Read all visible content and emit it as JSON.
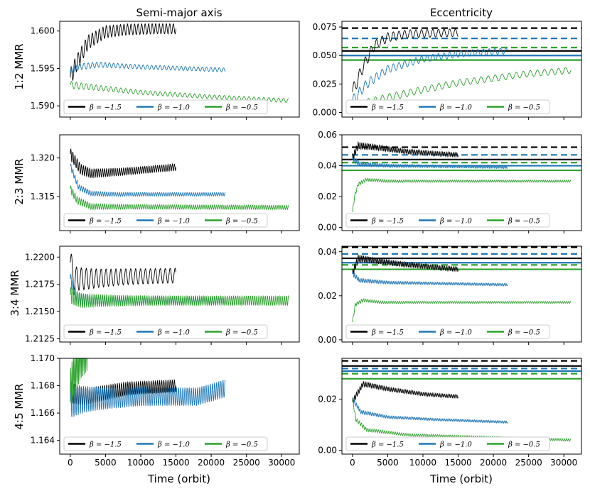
{
  "columns": [
    "Semi-major axis",
    "Eccentricity"
  ],
  "rows": [
    "1:2 MMR",
    "2:3 MMR",
    "3:4 MMR",
    "4:5 MMR"
  ],
  "xlabel": "Time (orbit)",
  "xticks": [
    0,
    5000,
    10000,
    15000,
    20000,
    25000,
    30000
  ],
  "xticks_labels": [
    "0",
    "5000",
    "10000",
    "15000",
    "20000",
    "25000",
    "30000"
  ],
  "xlim": [
    -1500,
    32500
  ],
  "colors": {
    "beta_-1.5": "#000000",
    "beta_-1.0": "#1f77b4",
    "beta_-0.5": "#2ca02c"
  },
  "legend": [
    "β = −1.5",
    "β = −1.0",
    "β = −0.5"
  ],
  "chart_data": [
    {
      "type": "line",
      "row": "1:2 MMR",
      "column": "Semi-major axis",
      "ylim": [
        1.5885,
        1.6013
      ],
      "yticks": [
        1.59,
        1.595,
        1.6
      ],
      "ytick_labels": [
        "1.590",
        "1.595",
        "1.600"
      ],
      "series": [
        {
          "name": "β = −1.5",
          "color": "#000000",
          "t_end": 15000,
          "points": [
            [
              0,
              1.5938
            ],
            [
              800,
              1.5955
            ],
            [
              2500,
              1.5985
            ],
            [
              5000,
              1.5999
            ],
            [
              8000,
              1.6002
            ],
            [
              12000,
              1.6003
            ],
            [
              15000,
              1.6003
            ]
          ],
          "osc_amp": 0.0012,
          "osc_period": 500
        },
        {
          "name": "β = −1.0",
          "color": "#1f77b4",
          "t_end": 22000,
          "points": [
            [
              0,
              1.5945
            ],
            [
              1000,
              1.5952
            ],
            [
              4000,
              1.5955
            ],
            [
              10000,
              1.5952
            ],
            [
              16000,
              1.595
            ],
            [
              22000,
              1.5948
            ]
          ],
          "osc_amp": 0.0005,
          "osc_period": 600
        },
        {
          "name": "β = −0.5",
          "color": "#2ca02c",
          "t_end": 31000,
          "points": [
            [
              0,
              1.5928
            ],
            [
              3000,
              1.5925
            ],
            [
              10000,
              1.5918
            ],
            [
              20000,
              1.5912
            ],
            [
              31000,
              1.5907
            ]
          ],
          "osc_amp": 0.0005,
          "osc_period": 700
        }
      ],
      "hlines": []
    },
    {
      "type": "line",
      "row": "1:2 MMR",
      "column": "Eccentricity",
      "ylim": [
        -0.004,
        0.08
      ],
      "yticks": [
        0.0,
        0.025,
        0.05,
        0.075
      ],
      "ytick_labels": [
        "0.000",
        "0.025",
        "0.050",
        "0.075"
      ],
      "series": [
        {
          "name": "β = −1.5",
          "color": "#000000",
          "t_end": 15000,
          "points": [
            [
              0,
              0.018
            ],
            [
              1500,
              0.04
            ],
            [
              3000,
              0.058
            ],
            [
              5000,
              0.066
            ],
            [
              8000,
              0.069
            ],
            [
              15000,
              0.07
            ]
          ],
          "osc_amp": 0.006,
          "osc_period": 800
        },
        {
          "name": "β = −1.0",
          "color": "#1f77b4",
          "t_end": 22000,
          "points": [
            [
              0,
              0.01
            ],
            [
              2000,
              0.025
            ],
            [
              5000,
              0.038
            ],
            [
              10000,
              0.047
            ],
            [
              16000,
              0.052
            ],
            [
              22000,
              0.054
            ]
          ],
          "osc_amp": 0.005,
          "osc_period": 800
        },
        {
          "name": "β = −0.5",
          "color": "#2ca02c",
          "t_end": 31000,
          "points": [
            [
              0,
              0.002
            ],
            [
              2000,
              0.008
            ],
            [
              5000,
              0.013
            ],
            [
              10000,
              0.02
            ],
            [
              15000,
              0.026
            ],
            [
              20000,
              0.03
            ],
            [
              25000,
              0.034
            ],
            [
              31000,
              0.037
            ]
          ],
          "osc_amp": 0.005,
          "osc_period": 1000
        }
      ],
      "hlines": [
        {
          "y": 0.074,
          "color": "#000000",
          "dashed": true
        },
        {
          "y": 0.054,
          "color": "#000000",
          "dashed": false
        },
        {
          "y": 0.065,
          "color": "#1f77b4",
          "dashed": true
        },
        {
          "y": 0.05,
          "color": "#1f77b4",
          "dashed": false
        },
        {
          "y": 0.057,
          "color": "#2ca02c",
          "dashed": true
        },
        {
          "y": 0.046,
          "color": "#2ca02c",
          "dashed": false
        }
      ]
    },
    {
      "type": "line",
      "row": "2:3 MMR",
      "column": "Semi-major axis",
      "ylim": [
        1.3106,
        1.323
      ],
      "yticks": [
        1.315,
        1.32
      ],
      "ytick_labels": [
        "1.315",
        "1.320"
      ],
      "series": [
        {
          "name": "β = −1.5",
          "color": "#000000",
          "t_end": 15000,
          "points": [
            [
              0,
              1.3205
            ],
            [
              400,
              1.32
            ],
            [
              1500,
              1.3185
            ],
            [
              3000,
              1.318
            ],
            [
              7000,
              1.3182
            ],
            [
              15000,
              1.3188
            ]
          ],
          "osc_amp": 0.0008,
          "osc_period": 300
        },
        {
          "name": "β = −1.0",
          "color": "#1f77b4",
          "t_end": 22000,
          "points": [
            [
              0,
              1.319
            ],
            [
              1200,
              1.3162
            ],
            [
              3000,
              1.3154
            ],
            [
              6000,
              1.3153
            ],
            [
              22000,
              1.3153
            ]
          ],
          "osc_amp": 0.0004,
          "osc_period": 300
        },
        {
          "name": "β = −0.5",
          "color": "#2ca02c",
          "t_end": 31000,
          "points": [
            [
              0,
              1.316
            ],
            [
              1000,
              1.3145
            ],
            [
              3000,
              1.3137
            ],
            [
              31000,
              1.3136
            ]
          ],
          "osc_amp": 0.0005,
          "osc_period": 300
        }
      ],
      "hlines": []
    },
    {
      "type": "line",
      "row": "2:3 MMR",
      "column": "Eccentricity",
      "ylim": [
        -0.002,
        0.06
      ],
      "yticks": [
        0.0,
        0.02,
        0.04,
        0.06
      ],
      "ytick_labels": [
        "0.00",
        "0.02",
        "0.04",
        "0.06"
      ],
      "series": [
        {
          "name": "β = −1.5",
          "color": "#000000",
          "t_end": 15000,
          "points": [
            [
              0,
              0.045
            ],
            [
              800,
              0.053
            ],
            [
              3000,
              0.052
            ],
            [
              8000,
              0.049
            ],
            [
              15000,
              0.047
            ]
          ],
          "osc_amp": 0.0025,
          "osc_period": 250
        },
        {
          "name": "β = −1.0",
          "color": "#1f77b4",
          "t_end": 22000,
          "points": [
            [
              0,
              0.044
            ],
            [
              1200,
              0.041
            ],
            [
              5000,
              0.04
            ],
            [
              22000,
              0.039
            ]
          ],
          "osc_amp": 0.0015,
          "osc_period": 250
        },
        {
          "name": "β = −0.5",
          "color": "#2ca02c",
          "t_end": 31000,
          "points": [
            [
              0,
              0.01
            ],
            [
              300,
              0.02
            ],
            [
              800,
              0.028
            ],
            [
              2000,
              0.031
            ],
            [
              5000,
              0.03
            ],
            [
              31000,
              0.03
            ]
          ],
          "osc_amp": 0.0012,
          "osc_period": 300
        }
      ],
      "hlines": [
        {
          "y": 0.052,
          "color": "#000000",
          "dashed": true
        },
        {
          "y": 0.044,
          "color": "#000000",
          "dashed": false
        },
        {
          "y": 0.047,
          "color": "#1f77b4",
          "dashed": true
        },
        {
          "y": 0.04,
          "color": "#1f77b4",
          "dashed": false
        },
        {
          "y": 0.042,
          "color": "#2ca02c",
          "dashed": true
        },
        {
          "y": 0.037,
          "color": "#2ca02c",
          "dashed": false
        }
      ]
    },
    {
      "type": "line",
      "row": "3:4 MMR",
      "column": "Semi-major axis",
      "ylim": [
        1.2122,
        1.221
      ],
      "yticks": [
        1.2125,
        1.215,
        1.2175,
        1.22
      ],
      "ytick_labels": [
        "1.2125",
        "1.2150",
        "1.2175",
        "1.2200"
      ],
      "series": [
        {
          "name": "β = −1.5",
          "color": "#000000",
          "t_end": 15000,
          "points": [
            [
              0,
              1.2195
            ],
            [
              600,
              1.218
            ],
            [
              2500,
              1.218
            ],
            [
              8000,
              1.2182
            ],
            [
              15000,
              1.2183
            ]
          ],
          "osc_amp": 0.0012,
          "osc_period": 700
        },
        {
          "name": "β = −1.0",
          "color": "#1f77b4",
          "t_end": 22000,
          "points": [
            [
              0,
              1.218
            ],
            [
              1000,
              1.2162
            ],
            [
              3000,
              1.216
            ],
            [
              22000,
              1.216
            ]
          ],
          "osc_amp": 0.0006,
          "osc_period": 300
        },
        {
          "name": "β = −0.5",
          "color": "#2ca02c",
          "t_end": 31000,
          "points": [
            [
              0,
              1.2165
            ],
            [
              1500,
              1.216
            ],
            [
              31000,
              1.216
            ]
          ],
          "osc_amp": 0.0008,
          "osc_period": 300
        }
      ],
      "hlines": []
    },
    {
      "type": "line",
      "row": "3:4 MMR",
      "column": "Eccentricity",
      "ylim": [
        -0.001,
        0.0425
      ],
      "yticks": [
        0.0,
        0.02,
        0.04
      ],
      "ytick_labels": [
        "0.00",
        "0.02",
        "0.04"
      ],
      "series": [
        {
          "name": "β = −1.5",
          "color": "#000000",
          "t_end": 15000,
          "points": [
            [
              0,
              0.03
            ],
            [
              800,
              0.037
            ],
            [
              3000,
              0.036
            ],
            [
              8000,
              0.034
            ],
            [
              15000,
              0.032
            ]
          ],
          "osc_amp": 0.0018,
          "osc_period": 250
        },
        {
          "name": "β = −1.0",
          "color": "#1f77b4",
          "t_end": 22000,
          "points": [
            [
              0,
              0.03
            ],
            [
              1000,
              0.027
            ],
            [
              5000,
              0.026
            ],
            [
              22000,
              0.025
            ]
          ],
          "osc_amp": 0.001,
          "osc_period": 250
        },
        {
          "name": "β = −0.5",
          "color": "#2ca02c",
          "t_end": 31000,
          "points": [
            [
              0,
              0.008
            ],
            [
              400,
              0.016
            ],
            [
              1500,
              0.018
            ],
            [
              4000,
              0.017
            ],
            [
              31000,
              0.017
            ]
          ],
          "osc_amp": 0.0008,
          "osc_period": 300
        }
      ],
      "hlines": [
        {
          "y": 0.042,
          "color": "#000000",
          "dashed": true
        },
        {
          "y": 0.037,
          "color": "#000000",
          "dashed": false
        },
        {
          "y": 0.039,
          "color": "#1f77b4",
          "dashed": true
        },
        {
          "y": 0.035,
          "color": "#1f77b4",
          "dashed": false
        },
        {
          "y": 0.034,
          "color": "#2ca02c",
          "dashed": true
        },
        {
          "y": 0.032,
          "color": "#2ca02c",
          "dashed": false
        }
      ]
    },
    {
      "type": "line",
      "row": "4:5 MMR",
      "column": "Semi-major axis",
      "ylim": [
        1.163,
        1.17
      ],
      "yticks": [
        1.164,
        1.166,
        1.168,
        1.17
      ],
      "ytick_labels": [
        "1.164",
        "1.166",
        "1.168",
        "1.170"
      ],
      "series": [
        {
          "name": "β = −1.5",
          "color": "#000000",
          "t_end": 15000,
          "points": [
            [
              0,
              1.1675
            ],
            [
              2000,
              1.1672
            ],
            [
              8000,
              1.1678
            ],
            [
              15000,
              1.168
            ]
          ],
          "osc_amp": 0.0008,
          "osc_period": 300
        },
        {
          "name": "β = −1.0",
          "color": "#1f77b4",
          "t_end": 22000,
          "points": [
            [
              0,
              1.1668
            ],
            [
              2000,
              1.167
            ],
            [
              10000,
              1.1672
            ],
            [
              18000,
              1.1672
            ],
            [
              22000,
              1.1678
            ]
          ],
          "osc_amp": 0.0012,
          "osc_period": 300
        },
        {
          "name": "β = −0.5",
          "color": "#2ca02c",
          "t_end": 2500,
          "points": [
            [
              0,
              1.1675
            ],
            [
              600,
              1.169
            ],
            [
              1500,
              1.17
            ],
            [
              2500,
              1.1705
            ]
          ],
          "osc_amp": 0.0018,
          "osc_period": 200
        }
      ],
      "hlines": []
    },
    {
      "type": "line",
      "row": "4:5 MMR",
      "column": "Eccentricity",
      "ylim": [
        -0.0015,
        0.036
      ],
      "yticks": [
        0.0,
        0.02
      ],
      "ytick_labels": [
        "0.00",
        "0.02"
      ],
      "series": [
        {
          "name": "β = −1.5",
          "color": "#000000",
          "t_end": 15000,
          "points": [
            [
              0,
              0.019
            ],
            [
              1500,
              0.026
            ],
            [
              5000,
              0.024
            ],
            [
              10000,
              0.022
            ],
            [
              15000,
              0.021
            ]
          ],
          "osc_amp": 0.0012,
          "osc_period": 250
        },
        {
          "name": "β = −1.0",
          "color": "#1f77b4",
          "t_end": 22000,
          "points": [
            [
              0,
              0.02
            ],
            [
              1200,
              0.015
            ],
            [
              5000,
              0.013
            ],
            [
              12000,
              0.012
            ],
            [
              22000,
              0.011
            ]
          ],
          "osc_amp": 0.0008,
          "osc_period": 250
        },
        {
          "name": "β = −0.5",
          "color": "#2ca02c",
          "t_end": 31000,
          "points": [
            [
              0,
              0.02
            ],
            [
              500,
              0.012
            ],
            [
              2000,
              0.008
            ],
            [
              8000,
              0.006
            ],
            [
              20000,
              0.005
            ],
            [
              31000,
              0.004
            ]
          ],
          "osc_amp": 0.0008,
          "osc_period": 300
        }
      ],
      "hlines": [
        {
          "y": 0.035,
          "color": "#000000",
          "dashed": true
        },
        {
          "y": 0.033,
          "color": "#000000",
          "dashed": false
        },
        {
          "y": 0.032,
          "color": "#1f77b4",
          "dashed": true
        },
        {
          "y": 0.031,
          "color": "#1f77b4",
          "dashed": false
        },
        {
          "y": 0.03,
          "color": "#2ca02c",
          "dashed": true
        },
        {
          "y": 0.028,
          "color": "#2ca02c",
          "dashed": false
        }
      ]
    }
  ]
}
